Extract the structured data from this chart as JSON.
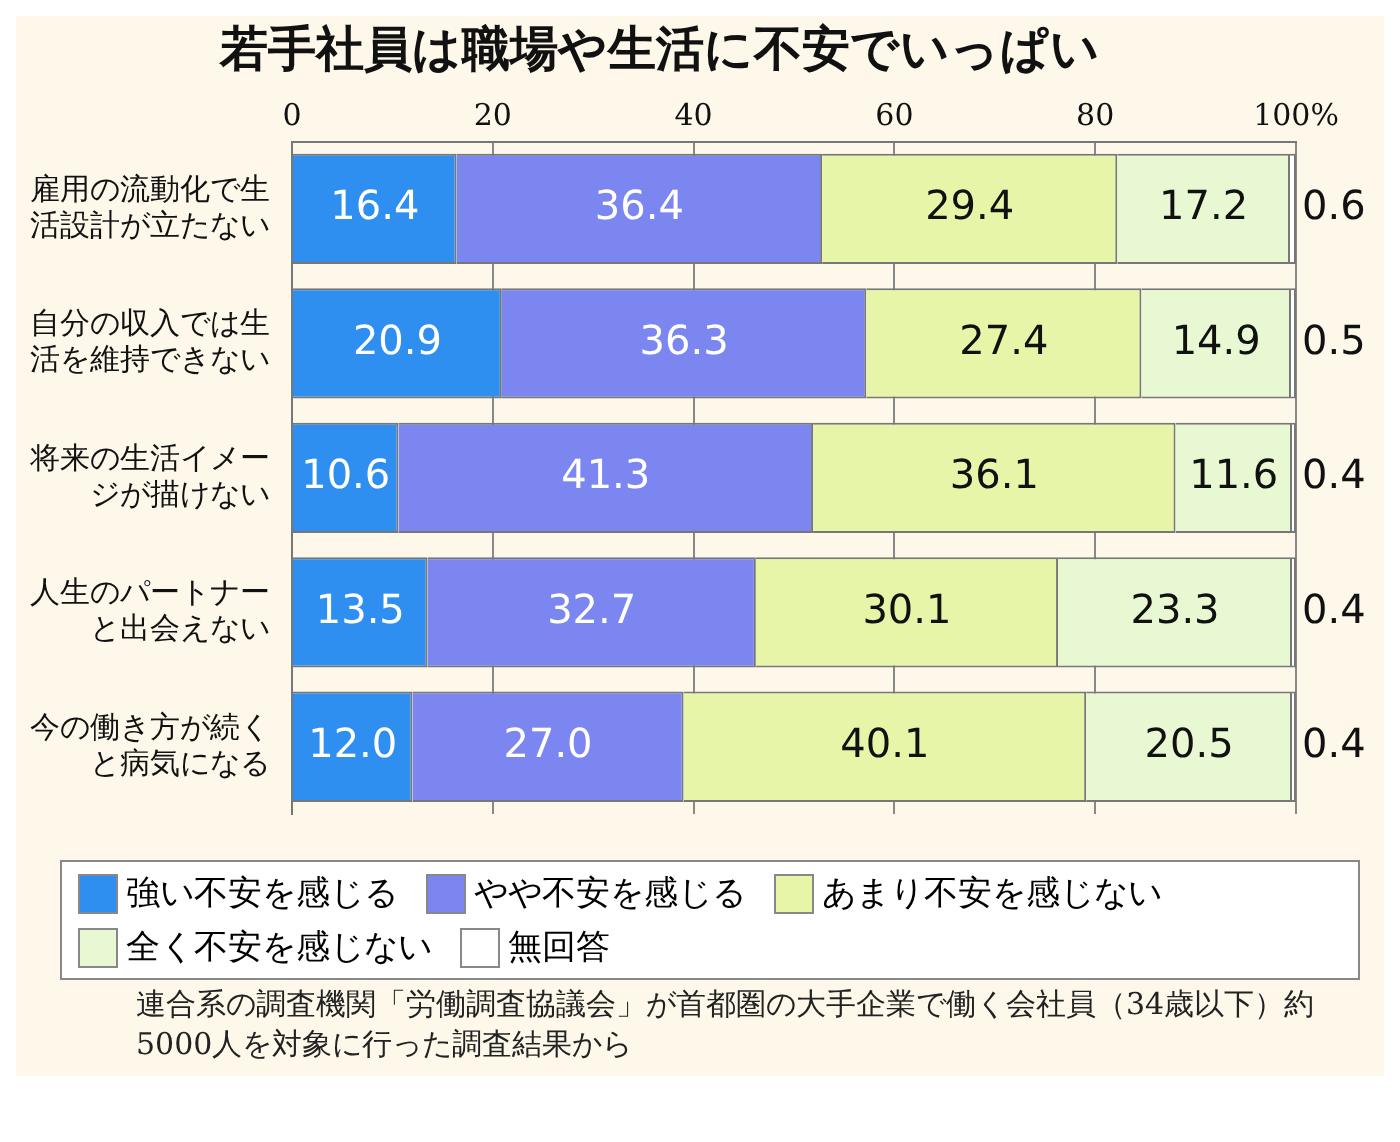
{
  "chart_data": {
    "type": "bar",
    "orientation": "horizontal",
    "stacked": true,
    "title": "若手社員は職場や生活に不安でいっぱい",
    "categories": [
      "雇用の流動化で生活設計が立たない",
      "自分の収入では生活を維持できない",
      "将来の生活イメージが描けない",
      "人生のパートナーと出会えない",
      "今の働き方が続くと病気になる"
    ],
    "series": [
      {
        "name": "強い不安を感じる",
        "color": "#2e8ff0",
        "values": [
          16.4,
          20.9,
          10.6,
          13.5,
          12.0
        ],
        "value_labels": [
          "16.4",
          "20.9",
          "10.6",
          "13.5",
          "12.0"
        ]
      },
      {
        "name": "やや不安を感じる",
        "color": "#7b86f0",
        "values": [
          36.4,
          36.3,
          41.3,
          32.7,
          27.0
        ],
        "value_labels": [
          "36.4",
          "36.3",
          "41.3",
          "32.7",
          "27.0"
        ]
      },
      {
        "name": "あまり不安を感じない",
        "color": "#e6f5a8",
        "values": [
          29.4,
          27.4,
          36.1,
          30.1,
          40.1
        ],
        "value_labels": [
          "29.4",
          "27.4",
          "36.1",
          "30.1",
          "40.1"
        ]
      },
      {
        "name": "全く不安を感じない",
        "color": "#e8f8d2",
        "values": [
          17.2,
          14.9,
          11.6,
          23.3,
          20.5
        ],
        "value_labels": [
          "17.2",
          "14.9",
          "11.6",
          "23.3",
          "20.5"
        ]
      },
      {
        "name": "無回答",
        "color": "#ffffff",
        "values": [
          0.6,
          0.5,
          0.4,
          0.4,
          0.4
        ],
        "value_labels": [
          "0.6",
          "0.5",
          "0.4",
          "0.4",
          "0.4"
        ]
      }
    ],
    "xlim": [
      0,
      100
    ],
    "xticks": [
      0,
      20,
      40,
      60,
      80,
      {
        "value": 100,
        "label": "100%"
      }
    ],
    "grid": "x",
    "legend": "bottom",
    "annotations": [
      "連合系の調査機関「労働調査協議会」が首都圏の大手企業で働く会社員（34歳以下）約5000人を対象に行った調査結果から"
    ]
  }
}
